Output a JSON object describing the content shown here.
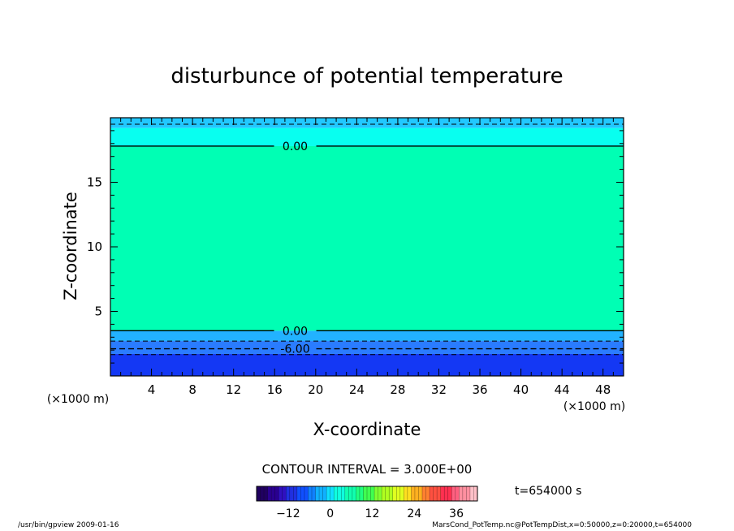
{
  "chart_data": {
    "type": "heatmap",
    "title": "disturbunce of potential temperature",
    "xlabel": "X-coordinate",
    "ylabel": "Z-coordinate",
    "x_unit": "(×1000 m)",
    "y_unit": "(×1000 m)",
    "xlim": [
      0,
      50
    ],
    "ylim": [
      0,
      20
    ],
    "x_ticks": [
      4,
      8,
      12,
      16,
      20,
      24,
      28,
      32,
      36,
      40,
      44,
      48
    ],
    "y_ticks": [
      5,
      10,
      15
    ],
    "bands": [
      {
        "z0": 19.2,
        "z1": 20.0,
        "color": "#22c8ff"
      },
      {
        "z0": 17.8,
        "z1": 19.2,
        "color": "#08fff0"
      },
      {
        "z0": 3.5,
        "z1": 17.8,
        "color": "#00ffb4"
      },
      {
        "z0": 2.7,
        "z1": 3.5,
        "color": "#22b2ff"
      },
      {
        "z0": 1.7,
        "z1": 2.7,
        "color": "#2a7cff"
      },
      {
        "z0": 0.0,
        "z1": 1.7,
        "color": "#1438f4"
      }
    ],
    "contours": [
      {
        "value": "0.00",
        "z": 17.8,
        "style": "solid"
      },
      {
        "value": "0.00",
        "z": 3.5,
        "style": "solid"
      },
      {
        "value": "-6.00",
        "z": 2.1,
        "style": "dashed"
      }
    ],
    "extra_dashed_levels": [
      19.5,
      2.7,
      1.65
    ],
    "contour_interval": "CONTOUR INTERVAL = 3.000E+00",
    "colorbar": {
      "min": -21,
      "max": 42,
      "ticks": [
        -12,
        0,
        12,
        24,
        36
      ],
      "colors": [
        "#200060",
        "#2a0090",
        "#3010c0",
        "#2030e0",
        "#1050ff",
        "#1080ff",
        "#10b0ff",
        "#10e0ff",
        "#10ffe0",
        "#10ffb0",
        "#20ff80",
        "#40ff50",
        "#80ff30",
        "#b0ff20",
        "#e0ff20",
        "#ffe020",
        "#ffb020",
        "#ff8030",
        "#ff5040",
        "#ff3050",
        "#ff6080",
        "#ff90a0",
        "#ffc0c8"
      ]
    },
    "time_label": "t=654000 s"
  },
  "footer": {
    "left": "/usr/bin/gpview   2009-01-16",
    "right": "MarsCond_PotTemp.nc@PotTempDist,x=0:50000,z=0:20000,t=654000"
  }
}
